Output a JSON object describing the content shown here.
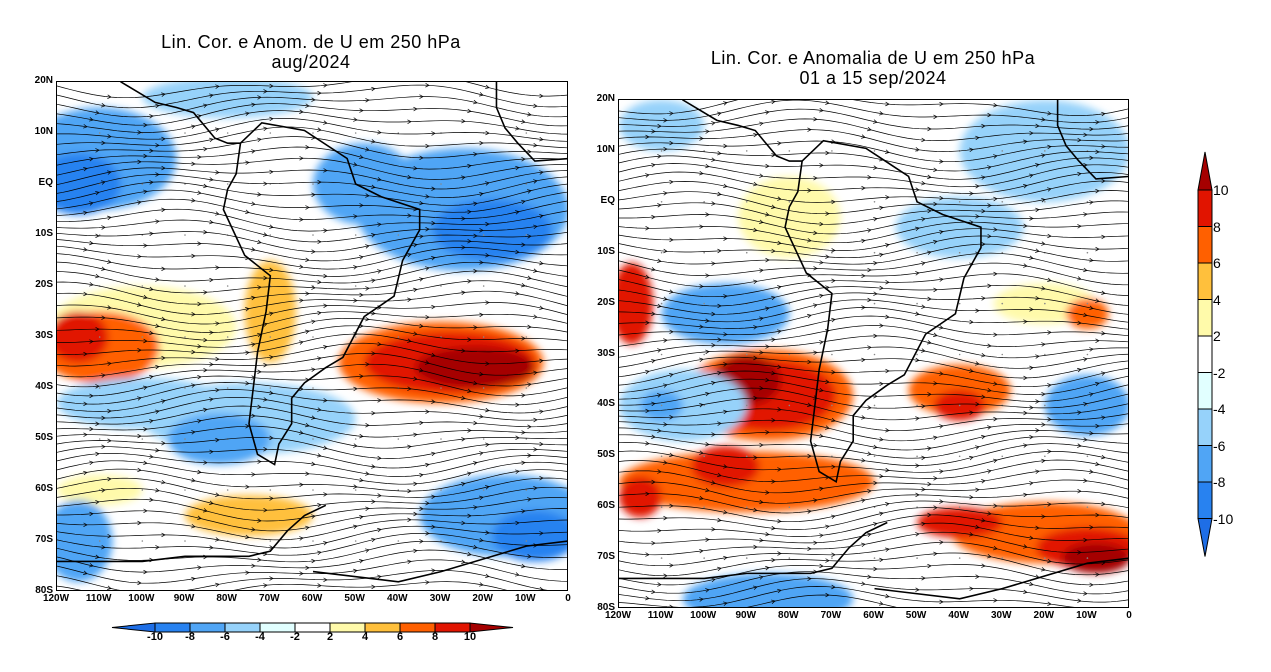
{
  "panels": [
    {
      "title_line1": "Lin. Cor. e Anom. de U em 250 hPa",
      "title_line2": "aug/2024",
      "anomaly_regions": [
        {
          "lon": -80,
          "lat": 17,
          "rlon": 20,
          "rlat": 4,
          "value": -5
        },
        {
          "lon": -110,
          "lat": 5,
          "rlon": 18,
          "rlat": 10,
          "value": -7
        },
        {
          "lon": -115,
          "lat": 0,
          "rlon": 10,
          "rlat": 6,
          "value": -9
        },
        {
          "lon": -25,
          "lat": -5,
          "rlon": 25,
          "rlat": 12,
          "value": -7
        },
        {
          "lon": -18,
          "lat": -9,
          "rlon": 14,
          "rlat": 6,
          "value": -9
        },
        {
          "lon": -48,
          "lat": 0,
          "rlon": 12,
          "rlat": 8,
          "value": -7
        },
        {
          "lon": -100,
          "lat": -28,
          "rlon": 22,
          "rlat": 8,
          "value": 3
        },
        {
          "lon": -110,
          "lat": -32,
          "rlon": 14,
          "rlat": 7,
          "value": 6
        },
        {
          "lon": -115,
          "lat": -30,
          "rlon": 7,
          "rlat": 5,
          "value": 8
        },
        {
          "lon": -70,
          "lat": -25,
          "rlon": 6,
          "rlat": 10,
          "value": 4
        },
        {
          "lon": -30,
          "lat": -35,
          "rlon": 24,
          "rlat": 8,
          "value": 6
        },
        {
          "lon": -28,
          "lat": -35,
          "rlon": 20,
          "rlat": 6,
          "value": 8
        },
        {
          "lon": -22,
          "lat": -36,
          "rlon": 14,
          "rlat": 4,
          "value": 10
        },
        {
          "lon": -100,
          "lat": -43,
          "rlon": 20,
          "rlat": 5,
          "value": -5
        },
        {
          "lon": -75,
          "lat": -46,
          "rlon": 25,
          "rlat": 7,
          "value": -5
        },
        {
          "lon": -82,
          "lat": -50,
          "rlon": 12,
          "rlat": 5,
          "value": -7
        },
        {
          "lon": -110,
          "lat": -60,
          "rlon": 10,
          "rlat": 3,
          "value": 3
        },
        {
          "lon": -75,
          "lat": -65,
          "rlon": 15,
          "rlat": 4,
          "value": 4
        },
        {
          "lon": -15,
          "lat": -65,
          "rlon": 20,
          "rlat": 8,
          "value": -7
        },
        {
          "lon": -8,
          "lat": -69,
          "rlon": 10,
          "rlat": 5,
          "value": -9
        },
        {
          "lon": -115,
          "lat": -70,
          "rlon": 8,
          "rlat": 8,
          "value": -7
        }
      ]
    },
    {
      "title_line1": "Lin. Cor. e Anomalia de U em 250 hPa",
      "title_line2": "01 a 15 sep/2024",
      "anomaly_regions": [
        {
          "lon": -110,
          "lat": 15,
          "rlon": 10,
          "rlat": 5,
          "value": -6
        },
        {
          "lon": -20,
          "lat": 10,
          "rlon": 20,
          "rlat": 10,
          "value": -6
        },
        {
          "lon": -40,
          "lat": -5,
          "rlon": 15,
          "rlat": 6,
          "value": -5
        },
        {
          "lon": -80,
          "lat": -3,
          "rlon": 12,
          "rlat": 8,
          "value": 3
        },
        {
          "lon": -117,
          "lat": -20,
          "rlon": 5,
          "rlat": 8,
          "value": 8
        },
        {
          "lon": -95,
          "lat": -22,
          "rlon": 15,
          "rlat": 6,
          "value": -7
        },
        {
          "lon": -20,
          "lat": -20,
          "rlon": 12,
          "rlat": 4,
          "value": 3
        },
        {
          "lon": -10,
          "lat": -22,
          "rlon": 5,
          "rlat": 3,
          "value": 6
        },
        {
          "lon": -85,
          "lat": -38,
          "rlon": 20,
          "rlat": 9,
          "value": 6
        },
        {
          "lon": -85,
          "lat": -38,
          "rlon": 16,
          "rlat": 7,
          "value": 8
        },
        {
          "lon": -90,
          "lat": -35,
          "rlon": 8,
          "rlat": 5,
          "value": 10
        },
        {
          "lon": -40,
          "lat": -37,
          "rlon": 12,
          "rlat": 5,
          "value": 6
        },
        {
          "lon": -40,
          "lat": -40,
          "rlon": 6,
          "rlat": 3,
          "value": 8
        },
        {
          "lon": -105,
          "lat": -40,
          "rlon": 15,
          "rlat": 7,
          "value": -5
        },
        {
          "lon": -110,
          "lat": -40,
          "rlon": 5,
          "rlat": 3,
          "value": -7
        },
        {
          "lon": -10,
          "lat": -40,
          "rlon": 10,
          "rlat": 6,
          "value": -7
        },
        {
          "lon": -90,
          "lat": -55,
          "rlon": 30,
          "rlat": 6,
          "value": 6
        },
        {
          "lon": -95,
          "lat": -52,
          "rlon": 8,
          "rlat": 4,
          "value": 8
        },
        {
          "lon": -115,
          "lat": -58,
          "rlon": 5,
          "rlat": 4,
          "value": 8
        },
        {
          "lon": -20,
          "lat": -65,
          "rlon": 22,
          "rlat": 6,
          "value": 6
        },
        {
          "lon": -40,
          "lat": -63,
          "rlon": 10,
          "rlat": 3,
          "value": 8
        },
        {
          "lon": -10,
          "lat": -68,
          "rlon": 12,
          "rlat": 4,
          "value": 8
        },
        {
          "lon": -8,
          "lat": -70,
          "rlon": 8,
          "rlat": 3,
          "value": 10
        },
        {
          "lon": -85,
          "lat": -78,
          "rlon": 20,
          "rlat": 5,
          "value": -8
        }
      ]
    }
  ],
  "lat_labels": [
    "20N",
    "10N",
    "EQ",
    "10S",
    "20S",
    "30S",
    "40S",
    "50S",
    "60S",
    "70S",
    "80S"
  ],
  "lon_labels": [
    "120W",
    "110W",
    "100W",
    "90W",
    "80W",
    "70W",
    "60W",
    "50W",
    "40W",
    "30W",
    "20W",
    "10W",
    "0"
  ],
  "colorbar": {
    "ticks": [
      "-10",
      "-8",
      "-6",
      "-4",
      "-2",
      "2",
      "4",
      "6",
      "8",
      "10"
    ],
    "colors": [
      "#1e6ee6",
      "#2882f0",
      "#50a5f5",
      "#96d2fa",
      "#e1ffff",
      "#ffffff",
      "#fffaaa",
      "#ffc03c",
      "#ff6000",
      "#e11400",
      "#a50000"
    ]
  }
}
